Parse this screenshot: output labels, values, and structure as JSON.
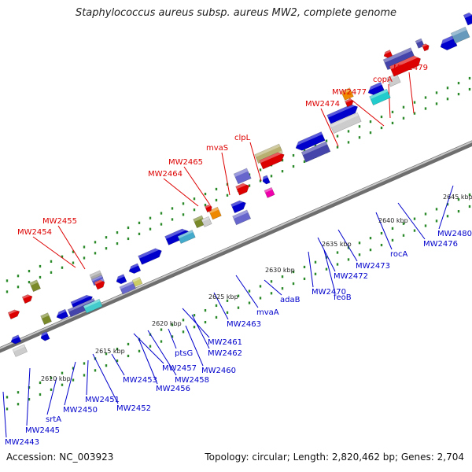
{
  "title": "Staphylococcus aureus subsp. aureus MW2, complete genome",
  "footer": {
    "accession": "Accession: NC_003923",
    "summary": "Topology: circular; Length: 2,820,462 bp; Genes: 2,704"
  },
  "colors": {
    "top_label": "#dd0000",
    "bottom_label": "#0000cc",
    "backbone": "#8a8a8a",
    "tick_dot": "#2a8a2a"
  },
  "ticks": [
    "2610 kbp",
    "2615 kbp",
    "2620 kbp",
    "2625 kbp",
    "2630 kbp",
    "2635 kbp",
    "2640 kbp",
    "2645 kbp"
  ],
  "top_labels": [
    "MW2454",
    "MW2455",
    "MW2464",
    "MW2465",
    "mvaS",
    "clpL",
    "MW2474",
    "MW2477",
    "copA",
    "MW2479"
  ],
  "bottom_labels": [
    "MW2443",
    "MW2445",
    "srtA",
    "MW2450",
    "MW2451",
    "MW2452",
    "MW2453",
    "MW2456",
    "MW2458",
    "MW2457",
    "ptsG",
    "MW2460",
    "MW2462",
    "MW2461",
    "MW2463",
    "mvaA",
    "adaB",
    "MW2470",
    "feoB",
    "MW2472",
    "MW2473",
    "rocA",
    "MW2476",
    "MW2480"
  ]
}
